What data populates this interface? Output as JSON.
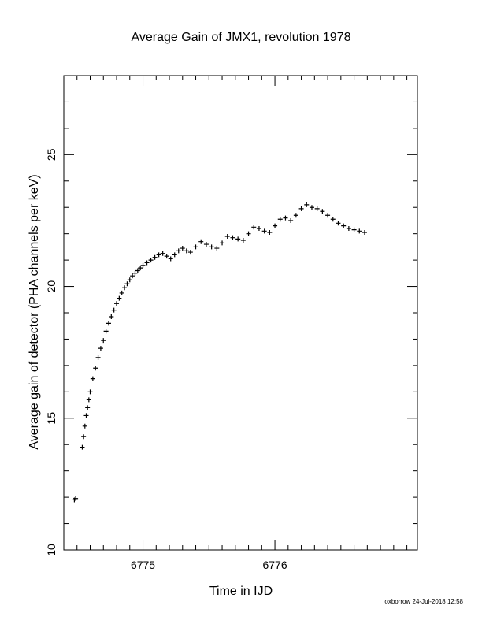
{
  "chart_data": {
    "type": "scatter",
    "title": "Average Gain of JMX1, revolution 1978",
    "xlabel": "Time in IJD",
    "ylabel": "Average gain of detector (PHA channels per keV)",
    "xlim": [
      6774.4,
      6777.08
    ],
    "ylim": [
      10,
      28
    ],
    "x_ticks": [
      6775,
      6776
    ],
    "y_ticks": [
      10,
      15,
      20,
      25
    ],
    "marker": "plus",
    "color": "#000000",
    "grid": false,
    "series": [
      {
        "x": [
          6774.48,
          6774.49,
          6774.54,
          6774.55,
          6774.56,
          6774.57,
          6774.58,
          6774.59,
          6774.6,
          6774.62,
          6774.64,
          6774.66,
          6774.68,
          6774.7,
          6774.72,
          6774.74,
          6774.76,
          6774.78,
          6774.8,
          6774.82,
          6774.84,
          6774.86,
          6774.88,
          6774.9,
          6774.92,
          6774.94,
          6774.96,
          6774.98,
          6775.0,
          6775.03,
          6775.06,
          6775.09,
          6775.12,
          6775.15,
          6775.18,
          6775.21,
          6775.24,
          6775.27,
          6775.3,
          6775.33,
          6775.36,
          6775.4,
          6775.44,
          6775.48,
          6775.52,
          6775.56,
          6775.6,
          6775.64,
          6775.68,
          6775.72,
          6775.76,
          6775.8,
          6775.84,
          6775.88,
          6775.92,
          6775.96,
          6776.0,
          6776.04,
          6776.08,
          6776.12,
          6776.16,
          6776.2,
          6776.24,
          6776.28,
          6776.32,
          6776.36,
          6776.4,
          6776.44,
          6776.48,
          6776.52,
          6776.56,
          6776.6,
          6776.64,
          6776.68
        ],
        "y": [
          11.9,
          11.95,
          13.9,
          14.3,
          14.7,
          15.1,
          15.4,
          15.7,
          16.0,
          16.5,
          16.9,
          17.3,
          17.65,
          17.95,
          18.3,
          18.6,
          18.85,
          19.1,
          19.35,
          19.55,
          19.75,
          19.95,
          20.1,
          20.25,
          20.4,
          20.5,
          20.6,
          20.7,
          20.8,
          20.9,
          21.0,
          21.1,
          21.2,
          21.25,
          21.15,
          21.05,
          21.2,
          21.35,
          21.45,
          21.35,
          21.3,
          21.5,
          21.7,
          21.6,
          21.5,
          21.45,
          21.65,
          21.9,
          21.85,
          21.8,
          21.75,
          22.0,
          22.25,
          22.2,
          22.1,
          22.05,
          22.3,
          22.55,
          22.6,
          22.5,
          22.7,
          22.95,
          23.1,
          23.0,
          22.95,
          22.85,
          22.7,
          22.55,
          22.4,
          22.3,
          22.2,
          22.15,
          22.1,
          22.05
        ]
      }
    ]
  },
  "footer": {
    "credit": "oxborrow 24-Jul-2018 12:58"
  }
}
